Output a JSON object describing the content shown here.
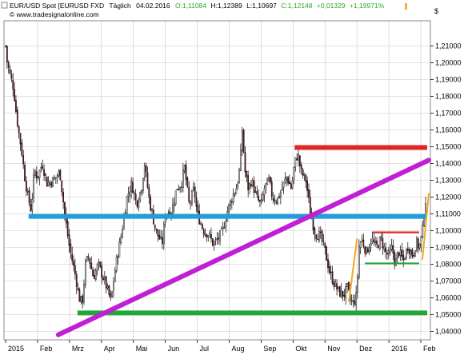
{
  "header": {
    "symbol": "EUR/USD Spot [EURUSD FXD",
    "period": "Täglich",
    "date": "04.02.2016",
    "open": "O:1,11084",
    "high": "H:1,12389",
    "low": "L:1,10697",
    "close": "C:1,12148",
    "change": "+0,01329",
    "change_pct": "+1,19971%",
    "source": "© www.tradesignalonline.com",
    "currency": "$"
  },
  "colors": {
    "background": "#ffffff",
    "grid": "#c8c8c8",
    "candle_up": "#ffffff",
    "candle_down": "#8b1a1a",
    "candle_outline": "#000000",
    "support_green": "#22a638",
    "support_blue": "#1f9ddd",
    "resistance_red": "#e0262a",
    "trend_purple": "#c11fd6",
    "channel_orange": "#f5a623",
    "change_green": "#2da82d",
    "marker_orange": "#f2b134"
  },
  "chart_data": {
    "type": "candlestick",
    "title": "EUR/USD Spot [EURUSD FXD",
    "xlabel": "",
    "ylabel": "",
    "ylim": [
      1.035,
      1.225
    ],
    "y_ticks": [
      "1,04000",
      "1,05000",
      "1,06000",
      "1,07000",
      "1,08000",
      "1,09000",
      "1,10000",
      "1,11000",
      "1,12000",
      "1,13000",
      "1,14000",
      "1,15000",
      "1,16000",
      "1,17000",
      "1,18000",
      "1,19000",
      "1,20000",
      "1,21000"
    ],
    "y_tick_values": [
      1.04,
      1.05,
      1.06,
      1.07,
      1.08,
      1.09,
      1.1,
      1.11,
      1.12,
      1.13,
      1.14,
      1.15,
      1.16,
      1.17,
      1.18,
      1.19,
      1.2,
      1.21
    ],
    "x_labels": [
      "2015",
      "Feb",
      "Mrz",
      "Apr",
      "Mai",
      "Jun",
      "Jul",
      "Aug",
      "Sep",
      "Okt",
      "Nov",
      "Dez",
      "2016",
      "Feb"
    ],
    "x_label_months": [
      0,
      1,
      2,
      3,
      4,
      5,
      6,
      7,
      8,
      9,
      10,
      11,
      12,
      13
    ],
    "x_range_months": [
      0,
      13.25
    ],
    "grid": true,
    "series_close_waypoints": [
      [
        0.0,
        1.21
      ],
      [
        0.05,
        1.2
      ],
      [
        0.15,
        1.192
      ],
      [
        0.25,
        1.185
      ],
      [
        0.32,
        1.172
      ],
      [
        0.4,
        1.16
      ],
      [
        0.5,
        1.148
      ],
      [
        0.6,
        1.132
      ],
      [
        0.7,
        1.12
      ],
      [
        0.8,
        1.112
      ],
      [
        0.9,
        1.136
      ],
      [
        1.0,
        1.132
      ],
      [
        1.15,
        1.14
      ],
      [
        1.3,
        1.128
      ],
      [
        1.5,
        1.13
      ],
      [
        1.7,
        1.135
      ],
      [
        1.85,
        1.11
      ],
      [
        2.0,
        1.09
      ],
      [
        2.2,
        1.072
      ],
      [
        2.3,
        1.06
      ],
      [
        2.4,
        1.057
      ],
      [
        2.5,
        1.08
      ],
      [
        2.6,
        1.085
      ],
      [
        2.75,
        1.072
      ],
      [
        2.9,
        1.08
      ],
      [
        3.0,
        1.075
      ],
      [
        3.1,
        1.07
      ],
      [
        3.3,
        1.058
      ],
      [
        3.45,
        1.08
      ],
      [
        3.6,
        1.095
      ],
      [
        3.8,
        1.12
      ],
      [
        3.95,
        1.128
      ],
      [
        4.1,
        1.116
      ],
      [
        4.25,
        1.125
      ],
      [
        4.35,
        1.14
      ],
      [
        4.5,
        1.118
      ],
      [
        4.7,
        1.1
      ],
      [
        4.9,
        1.092
      ],
      [
        5.0,
        1.11
      ],
      [
        5.2,
        1.112
      ],
      [
        5.35,
        1.125
      ],
      [
        5.5,
        1.128
      ],
      [
        5.6,
        1.138
      ],
      [
        5.75,
        1.115
      ],
      [
        5.9,
        1.125
      ],
      [
        6.0,
        1.11
      ],
      [
        6.2,
        1.1
      ],
      [
        6.35,
        1.098
      ],
      [
        6.5,
        1.092
      ],
      [
        6.65,
        1.095
      ],
      [
        6.8,
        1.1
      ],
      [
        6.95,
        1.112
      ],
      [
        7.1,
        1.12
      ],
      [
        7.25,
        1.127
      ],
      [
        7.35,
        1.14
      ],
      [
        7.4,
        1.162
      ],
      [
        7.5,
        1.135
      ],
      [
        7.6,
        1.125
      ],
      [
        7.7,
        1.13
      ],
      [
        7.85,
        1.12
      ],
      [
        8.0,
        1.115
      ],
      [
        8.1,
        1.125
      ],
      [
        8.25,
        1.13
      ],
      [
        8.35,
        1.12
      ],
      [
        8.5,
        1.118
      ],
      [
        8.65,
        1.125
      ],
      [
        8.8,
        1.132
      ],
      [
        8.95,
        1.125
      ],
      [
        9.05,
        1.14
      ],
      [
        9.15,
        1.146
      ],
      [
        9.25,
        1.135
      ],
      [
        9.4,
        1.13
      ],
      [
        9.55,
        1.11
      ],
      [
        9.7,
        1.098
      ],
      [
        9.85,
        1.097
      ],
      [
        10.0,
        1.088
      ],
      [
        10.15,
        1.075
      ],
      [
        10.3,
        1.068
      ],
      [
        10.45,
        1.063
      ],
      [
        10.6,
        1.062
      ],
      [
        10.7,
        1.066
      ],
      [
        10.8,
        1.058
      ],
      [
        10.9,
        1.057
      ],
      [
        11.0,
        1.062
      ],
      [
        11.05,
        1.09
      ],
      [
        11.15,
        1.095
      ],
      [
        11.3,
        1.087
      ],
      [
        11.45,
        1.095
      ],
      [
        11.6,
        1.09
      ],
      [
        11.75,
        1.095
      ],
      [
        11.9,
        1.087
      ],
      [
        12.0,
        1.085
      ],
      [
        12.1,
        1.09
      ],
      [
        12.2,
        1.08
      ],
      [
        12.3,
        1.088
      ],
      [
        12.45,
        1.082
      ],
      [
        12.6,
        1.091
      ],
      [
        12.75,
        1.085
      ],
      [
        12.85,
        1.093
      ],
      [
        12.95,
        1.09
      ],
      [
        13.05,
        1.099
      ],
      [
        13.1,
        1.11
      ],
      [
        13.15,
        1.118
      ]
    ],
    "support_green": {
      "price": 1.051,
      "from": 2.25,
      "to": 13.2
    },
    "support_blue": {
      "price": 1.1085,
      "from": 0.72,
      "to": 13.2
    },
    "resistance_red": {
      "price": 1.1495,
      "from": 9.05,
      "to": 13.2
    },
    "resistance_red_short": {
      "price": 1.099,
      "from": 11.5,
      "to": 12.95
    },
    "support_green_short": {
      "price": 1.0805,
      "from": 11.25,
      "to": 12.95
    },
    "trend_line": {
      "from": [
        1.65,
        1.038
      ],
      "to": [
        13.25,
        1.142
      ]
    },
    "channel_left": {
      "from": [
        10.75,
        1.058
      ],
      "to": [
        11.0,
        1.095
      ]
    },
    "channel_right": {
      "from": [
        13.05,
        1.083
      ],
      "to": [
        13.25,
        1.122
      ]
    }
  }
}
